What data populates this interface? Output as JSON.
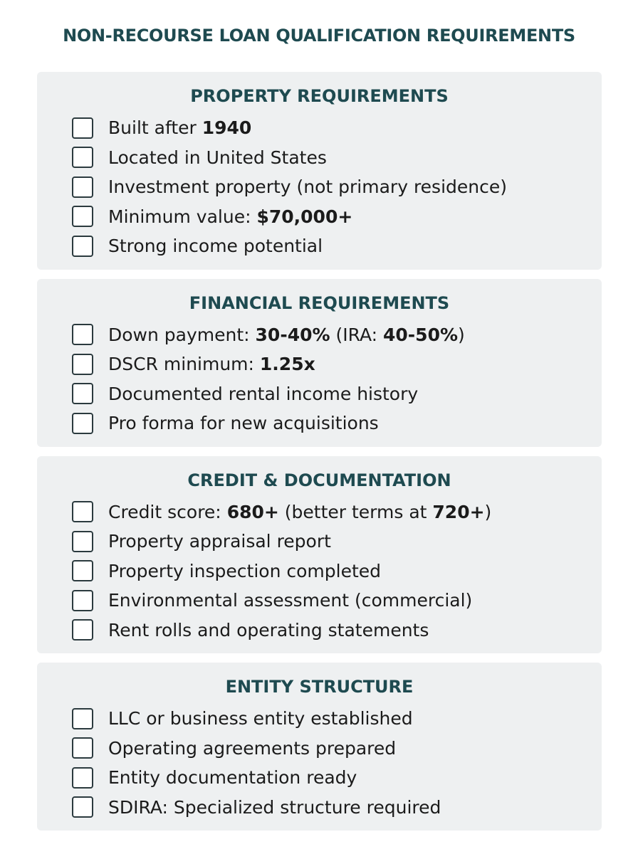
{
  "header": {
    "title": "NON-RECOURSE LOAN QUALIFICATION REQUIREMENTS"
  },
  "sections": [
    {
      "title": "PROPERTY REQUIREMENTS",
      "items": [
        [
          {
            "text": "Built after "
          },
          {
            "text": "1940",
            "bold": true
          }
        ],
        [
          {
            "text": "Located in United States"
          }
        ],
        [
          {
            "text": "Investment property (not primary residence)"
          }
        ],
        [
          {
            "text": "Minimum value: "
          },
          {
            "text": "$70,000+",
            "bold": true
          }
        ],
        [
          {
            "text": "Strong income potential"
          }
        ]
      ]
    },
    {
      "title": "FINANCIAL REQUIREMENTS",
      "items": [
        [
          {
            "text": "Down payment: "
          },
          {
            "text": "30-40%",
            "bold": true
          },
          {
            "text": " (IRA: "
          },
          {
            "text": "40-50%",
            "bold": true
          },
          {
            "text": ")"
          }
        ],
        [
          {
            "text": "DSCR minimum: "
          },
          {
            "text": "1.25x",
            "bold": true
          }
        ],
        [
          {
            "text": "Documented rental income history"
          }
        ],
        [
          {
            "text": "Pro forma for new acquisitions"
          }
        ]
      ]
    },
    {
      "title": "CREDIT & DOCUMENTATION",
      "items": [
        [
          {
            "text": "Credit score: "
          },
          {
            "text": "680+",
            "bold": true
          },
          {
            "text": " (better terms at "
          },
          {
            "text": "720+",
            "bold": true
          },
          {
            "text": ")"
          }
        ],
        [
          {
            "text": "Property appraisal report"
          }
        ],
        [
          {
            "text": "Property inspection completed"
          }
        ],
        [
          {
            "text": "Environmental assessment (commercial)"
          }
        ],
        [
          {
            "text": "Rent rolls and operating statements"
          }
        ]
      ]
    },
    {
      "title": "ENTITY STRUCTURE",
      "items": [
        [
          {
            "text": "LLC or business entity established"
          }
        ],
        [
          {
            "text": "Operating agreements prepared"
          }
        ],
        [
          {
            "text": "Entity documentation ready"
          }
        ],
        [
          {
            "text": "SDIRA: Specialized structure required"
          }
        ]
      ]
    }
  ]
}
